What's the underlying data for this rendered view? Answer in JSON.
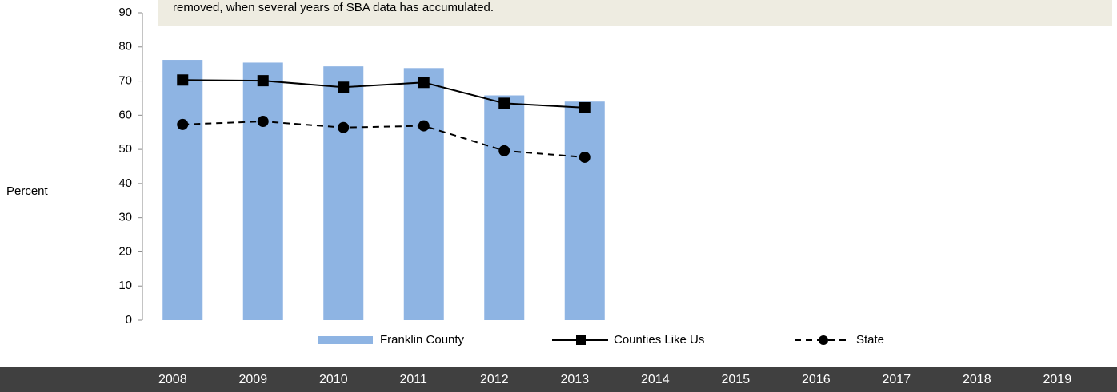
{
  "chart_data": {
    "type": "bar-line",
    "annotation": "removed, when several years of  SBA data has accumulated.",
    "y_label": "Percent",
    "categories": [
      "2008",
      "2009",
      "2010",
      "2011",
      "2012",
      "2013",
      "2014",
      "2015",
      "2016",
      "2017",
      "2018",
      "2019"
    ],
    "series": [
      {
        "name": "Franklin County",
        "kind": "bar",
        "color": "#8eb4e3",
        "values": [
          76.2,
          75.4,
          74.3,
          73.8,
          65.8,
          64.0,
          null,
          null,
          null,
          null,
          null,
          null
        ]
      },
      {
        "name": "Counties Like Us",
        "kind": "line",
        "color": "#000000",
        "dash": "solid",
        "marker": "square",
        "values": [
          70.3,
          70.1,
          68.2,
          69.6,
          63.5,
          62.2,
          null,
          null,
          null,
          null,
          null,
          null
        ]
      },
      {
        "name": "State",
        "kind": "line",
        "color": "#000000",
        "dash": "dashed",
        "marker": "circle",
        "values": [
          57.3,
          58.2,
          56.4,
          56.9,
          49.6,
          47.7,
          null,
          null,
          null,
          null,
          null,
          null
        ]
      }
    ],
    "ylim": [
      0,
      90
    ],
    "yticks": [
      0,
      10,
      20,
      30,
      40,
      50,
      60,
      70,
      80,
      90
    ]
  }
}
